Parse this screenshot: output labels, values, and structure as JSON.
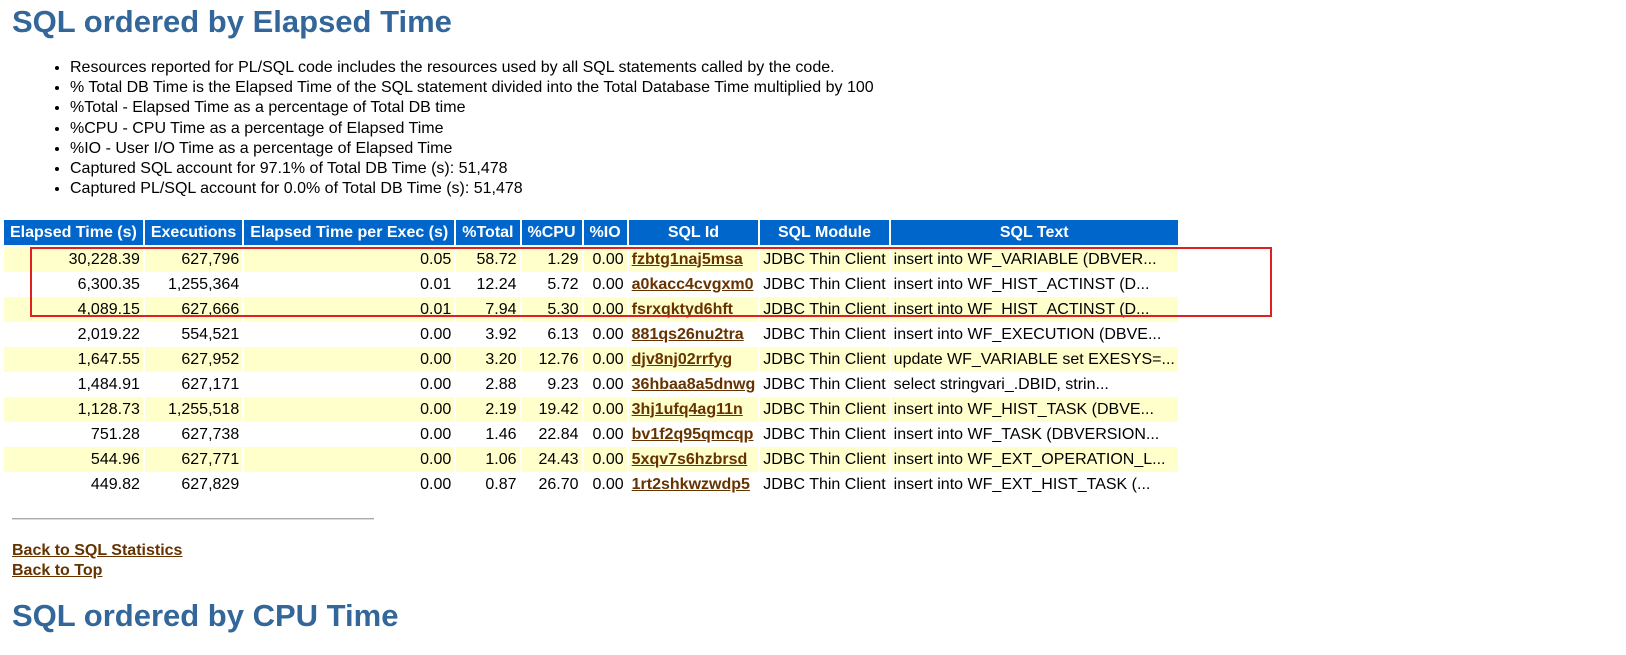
{
  "section_title": "SQL ordered by Elapsed Time",
  "notes": [
    "Resources reported for PL/SQL code includes the resources used by all SQL statements called by the code.",
    "% Total DB Time is the Elapsed Time of the SQL statement divided into the Total Database Time multiplied by 100",
    "%Total - Elapsed Time as a percentage of Total DB time",
    "%CPU - CPU Time as a percentage of Elapsed Time",
    "%IO - User I/O Time as a percentage of Elapsed Time",
    "Captured SQL account for 97.1% of Total DB Time (s): 51,478",
    "Captured PL/SQL account for 0.0% of Total DB Time (s): 51,478"
  ],
  "table": {
    "headers": [
      "Elapsed Time (s)",
      "Executions",
      "Elapsed Time per Exec (s)",
      "%Total",
      "%CPU",
      "%IO",
      "SQL Id",
      "SQL Module",
      "SQL Text"
    ],
    "rows": [
      [
        "30,228.39",
        "627,796",
        "0.05",
        "58.72",
        "1.29",
        "0.00",
        "fzbtg1naj5msa",
        "JDBC Thin Client",
        "insert into WF_VARIABLE (DBVER..."
      ],
      [
        "6,300.35",
        "1,255,364",
        "0.01",
        "12.24",
        "5.72",
        "0.00",
        "a0kacc4cvgxm0",
        "JDBC Thin Client",
        "insert into WF_HIST_ACTINST (D..."
      ],
      [
        "4,089.15",
        "627,666",
        "0.01",
        "7.94",
        "5.30",
        "0.00",
        "fsrxqktyd6hft",
        "JDBC Thin Client",
        "insert into WF_HIST_ACTINST (D..."
      ],
      [
        "2,019.22",
        "554,521",
        "0.00",
        "3.92",
        "6.13",
        "0.00",
        "881qs26nu2tra",
        "JDBC Thin Client",
        "insert into WF_EXECUTION (DBVE..."
      ],
      [
        "1,647.55",
        "627,952",
        "0.00",
        "3.20",
        "12.76",
        "0.00",
        "djv8nj02rrfyg",
        "JDBC Thin Client",
        "update WF_VARIABLE set EXESYS=..."
      ],
      [
        "1,484.91",
        "627,171",
        "0.00",
        "2.88",
        "9.23",
        "0.00",
        "36hbaa8a5dnwg",
        "JDBC Thin Client",
        "select stringvari_.DBID, strin..."
      ],
      [
        "1,128.73",
        "1,255,518",
        "0.00",
        "2.19",
        "19.42",
        "0.00",
        "3hj1ufq4ag11n",
        "JDBC Thin Client",
        "insert into WF_HIST_TASK (DBVE..."
      ],
      [
        "751.28",
        "627,738",
        "0.00",
        "1.46",
        "22.84",
        "0.00",
        "bv1f2q95qmcqp",
        "JDBC Thin Client",
        "insert into WF_TASK (DBVERSION..."
      ],
      [
        "544.96",
        "627,771",
        "0.00",
        "1.06",
        "24.43",
        "0.00",
        "5xqv7s6hzbrsd",
        "JDBC Thin Client",
        "insert into WF_EXT_OPERATION_L..."
      ],
      [
        "449.82",
        "627,829",
        "0.00",
        "0.87",
        "26.70",
        "0.00",
        "1rt2shkwzwdp5",
        "JDBC Thin Client",
        "insert into WF_EXT_HIST_TASK (..."
      ]
    ]
  },
  "links": {
    "back_to_sql_statistics": "Back to SQL Statistics",
    "back_to_top": "Back to Top"
  },
  "next_section_title": "SQL ordered by CPU Time",
  "colors": {
    "title": "#336699",
    "header_bg": "#0066cc",
    "row_alt_bg": "#ffffcc",
    "link": "#663300",
    "highlight_border": "#e02020"
  }
}
